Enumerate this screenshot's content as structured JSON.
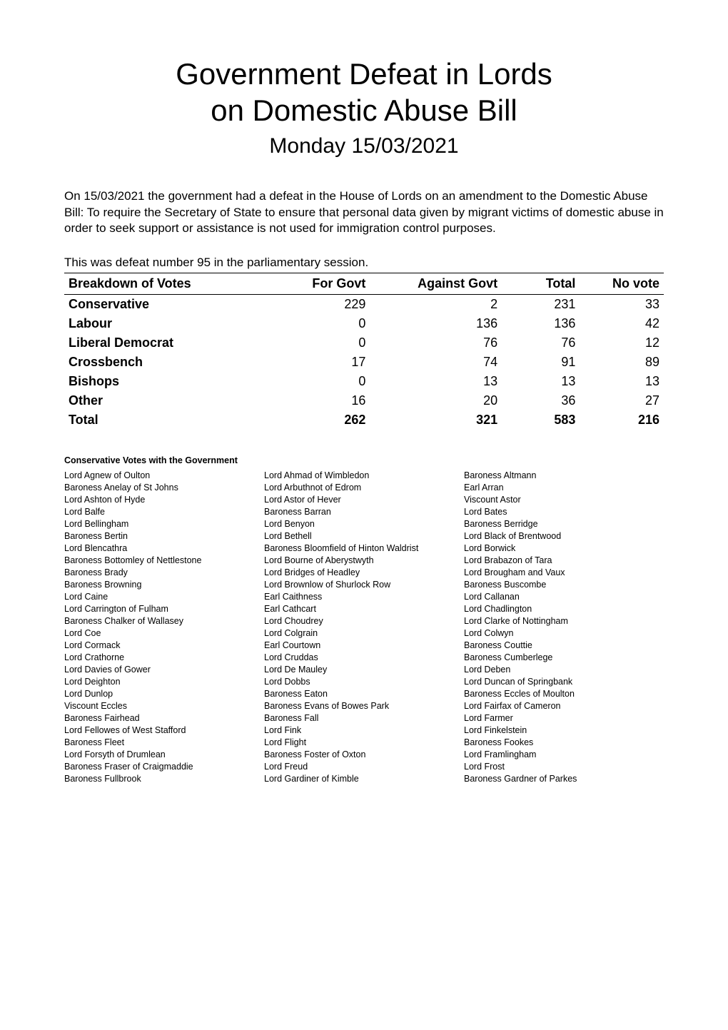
{
  "title_lines": [
    "Government Defeat in Lords",
    "on Domestic Abuse Bill"
  ],
  "date_line": "Monday 15/03/2021",
  "intro_text": "On 15/03/2021 the government had a defeat in the House of Lords on an amendment to the Domestic Abuse Bill: To require the Secretary of State to ensure that personal data given by migrant victims of domestic abuse in order to seek support or assistance is not used for immigration control purposes.",
  "defeat_line": "This was defeat number 95 in the parliamentary session.",
  "vote_table": {
    "headers": {
      "party": "Breakdown of Votes",
      "for": "For Govt",
      "against": "Against Govt",
      "total": "Total",
      "novote": "No vote"
    },
    "rows": [
      {
        "party": "Conservative",
        "for": "229",
        "against": "2",
        "total": "231",
        "novote": "33"
      },
      {
        "party": "Labour",
        "for": "0",
        "against": "136",
        "total": "136",
        "novote": "42"
      },
      {
        "party": "Liberal Democrat",
        "for": "0",
        "against": "76",
        "total": "76",
        "novote": "12"
      },
      {
        "party": "Crossbench",
        "for": "17",
        "against": "74",
        "total": "91",
        "novote": "89"
      },
      {
        "party": "Bishops",
        "for": "0",
        "against": "13",
        "total": "13",
        "novote": "13"
      },
      {
        "party": "Other",
        "for": "16",
        "against": "20",
        "total": "36",
        "novote": "27"
      }
    ],
    "total_row": {
      "party": "Total",
      "for": "262",
      "against": "321",
      "total": "583",
      "novote": "216"
    }
  },
  "section_heading": "Conservative Votes with the Government",
  "members": [
    [
      "Lord Agnew of Oulton",
      "Lord Ahmad of Wimbledon",
      "Baroness Altmann"
    ],
    [
      "Baroness Anelay of St Johns",
      "Lord Arbuthnot of Edrom",
      "Earl Arran"
    ],
    [
      "Lord Ashton of Hyde",
      "Lord Astor of Hever",
      "Viscount Astor"
    ],
    [
      "Lord Balfe",
      "Baroness Barran",
      "Lord Bates"
    ],
    [
      "Lord Bellingham",
      "Lord Benyon",
      "Baroness Berridge"
    ],
    [
      "Baroness Bertin",
      "Lord Bethell",
      "Lord Black of Brentwood"
    ],
    [
      "Lord Blencathra",
      "Baroness Bloomfield of Hinton Waldrist",
      "Lord Borwick"
    ],
    [
      "Baroness Bottomley of Nettlestone",
      "Lord Bourne of Aberystwyth",
      "Lord Brabazon of Tara"
    ],
    [
      "Baroness Brady",
      "Lord Bridges of Headley",
      "Lord Brougham and Vaux"
    ],
    [
      "Baroness Browning",
      "Lord Brownlow of Shurlock Row",
      "Baroness Buscombe"
    ],
    [
      "Lord Caine",
      "Earl Caithness",
      "Lord Callanan"
    ],
    [
      "Lord Carrington of Fulham",
      "Earl Cathcart",
      "Lord Chadlington"
    ],
    [
      "Baroness Chalker of Wallasey",
      "Lord Choudrey",
      "Lord Clarke of Nottingham"
    ],
    [
      "Lord Coe",
      "Lord Colgrain",
      "Lord Colwyn"
    ],
    [
      "Lord Cormack",
      "Earl Courtown",
      "Baroness Couttie"
    ],
    [
      "Lord Crathorne",
      "Lord Cruddas",
      "Baroness Cumberlege"
    ],
    [
      "Lord Davies of Gower",
      "Lord De Mauley",
      "Lord Deben"
    ],
    [
      "Lord Deighton",
      "Lord Dobbs",
      "Lord Duncan of Springbank"
    ],
    [
      "Lord Dunlop",
      "Baroness Eaton",
      "Baroness Eccles of Moulton"
    ],
    [
      "Viscount Eccles",
      "Baroness Evans of Bowes Park",
      "Lord Fairfax of Cameron"
    ],
    [
      "Baroness Fairhead",
      "Baroness Fall",
      "Lord Farmer"
    ],
    [
      "Lord Fellowes of West Stafford",
      "Lord Fink",
      "Lord Finkelstein"
    ],
    [
      "Baroness Fleet",
      "Lord Flight",
      "Baroness Fookes"
    ],
    [
      "Lord Forsyth of Drumlean",
      "Baroness Foster of Oxton",
      "Lord Framlingham"
    ],
    [
      "Baroness Fraser of Craigmaddie",
      "Lord Freud",
      "Lord Frost"
    ],
    [
      "Baroness Fullbrook",
      "Lord Gardiner of Kimble",
      "Baroness Gardner of Parkes"
    ]
  ],
  "colors": {
    "text": "#000000",
    "background": "#ffffff",
    "rule": "#000000"
  },
  "fonts": {
    "title_size_pt": 32,
    "date_size_pt": 23,
    "body_size_pt": 13,
    "table_size_pt": 14,
    "members_size_pt": 9.5
  }
}
